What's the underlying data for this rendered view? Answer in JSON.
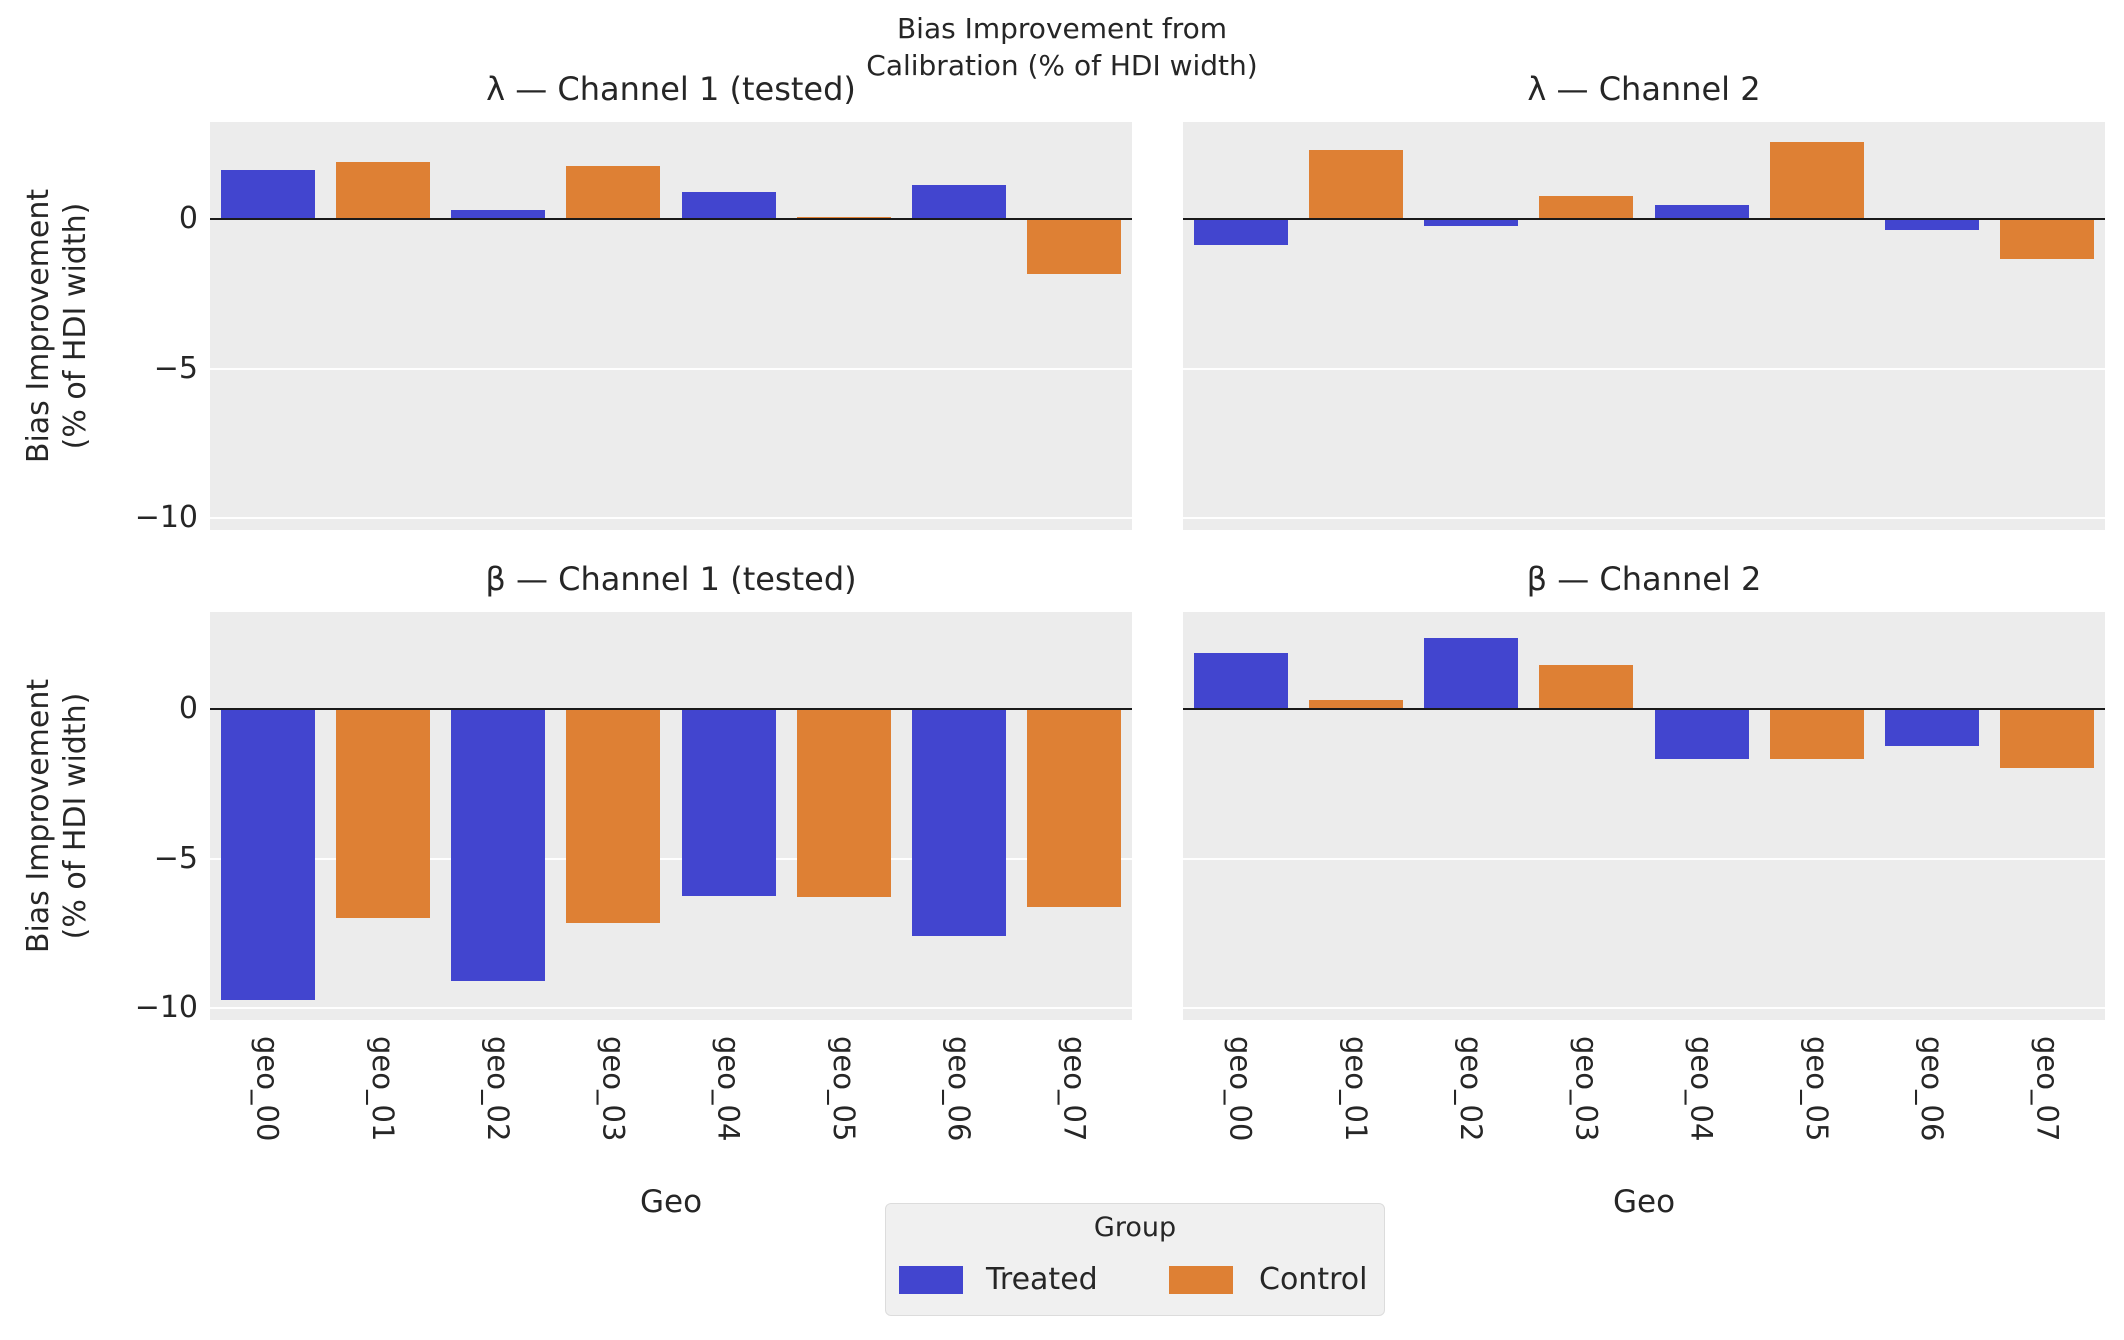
{
  "figure": {
    "suptitle": "Bias Improvement from\nCalibration (% of HDI width)",
    "ylabel": "Bias Improvement\n(% of HDI width)",
    "xlabel": "Geo"
  },
  "chart_data": {
    "type": "bar",
    "layout": "2x2 grid, shared axes",
    "categories": [
      "geo_00",
      "geo_01",
      "geo_02",
      "geo_03",
      "geo_04",
      "geo_05",
      "geo_06",
      "geo_07"
    ],
    "category_groups": [
      "Treated",
      "Control",
      "Treated",
      "Control",
      "Treated",
      "Control",
      "Treated",
      "Control"
    ],
    "yticks": [
      0,
      -5,
      -10
    ],
    "ytick_labels": [
      "0",
      "−5",
      "−10"
    ],
    "ylim": [
      -10.4,
      3.25
    ],
    "grid": "horizontal white gridlines on light gray panel",
    "subplots": [
      {
        "id": "lambda-ch1",
        "title": "λ — Channel 1 (tested)",
        "values": [
          1.65,
          1.9,
          0.32,
          1.78,
          0.9,
          0.08,
          1.14,
          -1.82
        ]
      },
      {
        "id": "lambda-ch2",
        "title": "λ — Channel 2",
        "values": [
          -0.85,
          2.32,
          -0.22,
          0.79,
          0.46,
          2.57,
          -0.37,
          -1.34
        ]
      },
      {
        "id": "beta-ch1",
        "title": "β — Channel 1 (tested)",
        "values": [
          -9.72,
          -7.0,
          -9.08,
          -7.15,
          -6.25,
          -6.3,
          -7.6,
          -6.62
        ]
      },
      {
        "id": "beta-ch2",
        "title": "β — Channel 2",
        "values": [
          1.87,
          0.31,
          2.38,
          1.48,
          -1.66,
          -1.68,
          -1.23,
          -1.96
        ]
      }
    ],
    "legend": {
      "position": "bottom center",
      "title": "Group",
      "entries": [
        {
          "label": "Treated",
          "color": "#4245CF"
        },
        {
          "label": "Control",
          "color": "#DE8034"
        }
      ]
    }
  },
  "colors": {
    "treated": "#4245CF",
    "control": "#DE8034",
    "plot_bg": "#ECECEC",
    "gridline": "#FFFFFF",
    "zero_line": "#1A1A1A",
    "text": "#262626",
    "legend_bg": "#F0F0F0",
    "legend_border": "#DCDCDC"
  }
}
